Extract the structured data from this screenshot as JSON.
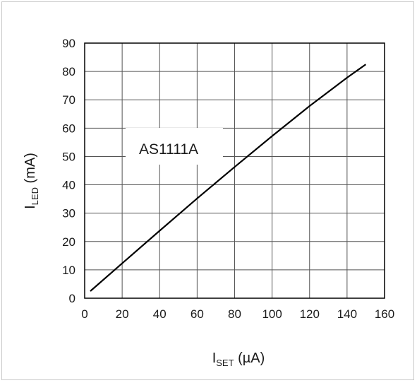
{
  "chart_data": {
    "type": "line",
    "annotation": "AS1111A",
    "xlabel": {
      "main": "I",
      "sub": "SET",
      "unit": " (µA)"
    },
    "ylabel": {
      "main": "I",
      "sub": "LED",
      "unit": " (mA)"
    },
    "xlim": [
      0,
      160
    ],
    "ylim": [
      0,
      90
    ],
    "xticks": [
      "0",
      "20",
      "40",
      "60",
      "80",
      "100",
      "120",
      "140",
      "160"
    ],
    "yticks": [
      "0",
      "10",
      "20",
      "30",
      "40",
      "50",
      "60",
      "70",
      "80",
      "90"
    ],
    "grid": true,
    "series": [
      {
        "x": [
          3,
          20,
          40,
          60,
          80,
          100,
          120,
          140,
          150
        ],
        "y": [
          2.5,
          12.3,
          23.8,
          35.2,
          46.3,
          57.2,
          67.8,
          77.8,
          82.5
        ]
      }
    ],
    "colors": {
      "line": "#000000",
      "grid": "#555555",
      "frame": "#000000"
    }
  }
}
